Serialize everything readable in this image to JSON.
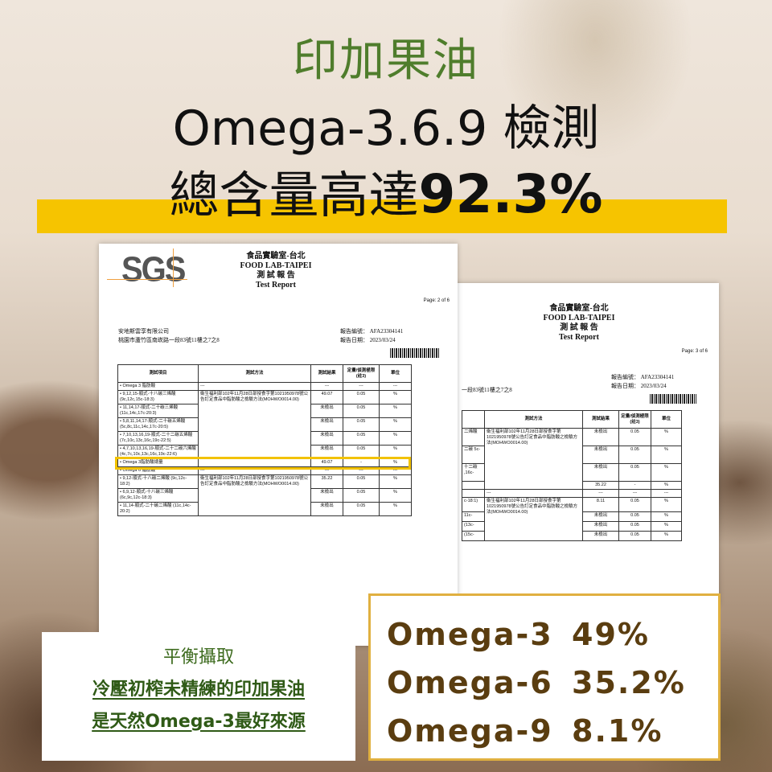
{
  "headline": {
    "line1": "印加果油",
    "line2": "Omega-3.6.9 檢測",
    "line3_prefix": "總含量高達",
    "line3_value": "92.3%"
  },
  "colors": {
    "title_green": "#4f7d2c",
    "highlight_yellow": "#f6c400",
    "omega_brown": "#5a3d10"
  },
  "report_left": {
    "logo": "SGS",
    "lab_zh": "食品實驗室-台北",
    "lab_en": "FOOD LAB-TAIPEI",
    "title_zh": "測 試 報 告",
    "title_en": "Test Report",
    "page": "Page: 2 of 6",
    "company": "安地斯雲享有限公司",
    "address": "桃園市蘆竹區南崁路一段83號11樓之7之8",
    "report_no_label": "報告編號：",
    "report_no": "AFA23304141",
    "date_label": "報告日期：",
    "date": "2023/03/24",
    "headers": [
      "測試項目",
      "測試方法",
      "測試結果",
      "定量/偵測極限(註3)",
      "單位"
    ],
    "method": "衛生福利部102年11月28日部授食字第1021950978號公告訂定食品中脂肪酸之檢驗方法(MOHWO0014.00)",
    "rows": [
      [
        "• Omega 3 脂肪酸",
        "---",
        "---",
        "---",
        "---"
      ],
      [
        "• 9,12,15-順式-十八碳三烯酸 (9c,12c,15c-18:3)",
        "M",
        "49.07",
        "0.05",
        "%"
      ],
      [
        "• 11,14,17-順式-二十碳三烯酸(11c,14c,17c-20:3)",
        "",
        "未檢出",
        "0.05",
        "%"
      ],
      [
        "• 5,8,11,14,17-順式-二十碳五烯酸(5c,8c,11c,14c,17c-20:5)",
        "",
        "未檢出",
        "0.05",
        "%"
      ],
      [
        "• 7,10,13,16,19-順式-二十二碳五烯酸 (7c,10c,13c,16c,19c-22:5)",
        "",
        "未檢出",
        "0.05",
        "%"
      ],
      [
        "• 4,7,10,13,16,19-順式-二十二碳六烯酸 (4c,7c,10c,13c,16c,19c-22:6)",
        "",
        "未檢出",
        "0.05",
        "%"
      ],
      [
        "• Omega 3脂肪酸總量",
        "",
        "49.07",
        "-",
        "%"
      ],
      [
        "• Omega 6 脂肪酸",
        "---",
        "---",
        "---",
        "---"
      ],
      [
        "• 9,12-順式-十八碳二烯酸 (9c,12c-18:2)",
        "M",
        "35.22",
        "0.05",
        "%"
      ],
      [
        "• 6,9,12-順式-十八碳三烯酸 (6c,9c,12c-18:3)",
        "",
        "未檢出",
        "0.05",
        "%"
      ],
      [
        "• 11,14-順式-二十碳二烯酸 (11c,14c-20:2)",
        "",
        "未檢出",
        "0.05",
        "%"
      ]
    ]
  },
  "report_right": {
    "lab_zh": "食品實驗室-台北",
    "lab_en": "FOOD LAB-TAIPEI",
    "title_zh": "測 試 報 告",
    "title_en": "Test Report",
    "page": "Page: 3 of 6",
    "address_partial": "一段83號11樓之7之8",
    "report_no_label": "報告編號：",
    "report_no": "AFA23304141",
    "date_label": "報告日期：",
    "date": "2023/03/24",
    "headers": [
      "",
      "測試方法",
      "測試結果",
      "定量/偵測極限(註3)",
      "單位"
    ],
    "rows": [
      [
        "二烯酸",
        "M",
        "未檢出",
        "0.05",
        "%"
      ],
      [
        "二碳 5c-",
        "",
        "未檢出",
        "0.05",
        "%"
      ],
      [
        "十二碳 ,16c-",
        "",
        "未檢出",
        "0.05",
        "%"
      ],
      [
        "",
        "",
        "35.22",
        "-",
        "%"
      ],
      [
        "",
        "---",
        "---",
        "---",
        "---"
      ],
      [
        "c-18:1)",
        "M",
        "8.11",
        "0.05",
        "%"
      ],
      [
        "11c-",
        "",
        "未檢出",
        "0.05",
        "%"
      ],
      [
        "(13c-",
        "",
        "未檢出",
        "0.05",
        "%"
      ],
      [
        "(15c-",
        "",
        "未檢出",
        "0.05",
        "%"
      ]
    ]
  },
  "note_box": {
    "line1": "平衡攝取",
    "line2": "冷壓初榨未精練的印加果油",
    "line3": "是天然Omega-3最好來源"
  },
  "omega_box": [
    {
      "name": "Omega-3",
      "value": "49%"
    },
    {
      "name": "Omega-6",
      "value": "35.2%"
    },
    {
      "name": "Omega-9",
      "value": "8.1%"
    }
  ]
}
